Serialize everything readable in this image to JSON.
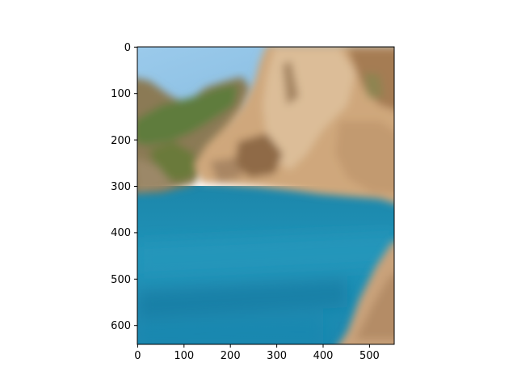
{
  "axes": {
    "x_ticks": [
      "0",
      "100",
      "200",
      "300",
      "400",
      "500"
    ],
    "y_ticks": [
      "0",
      "100",
      "200",
      "300",
      "400",
      "500",
      "600"
    ]
  },
  "image": {
    "description_icon": "coastal-landscape-image",
    "colors": {
      "sky": "#8ec2e6",
      "water": "#1e8fb4",
      "water_deep": "#156f96",
      "cliff_light": "#d9b184",
      "cliff_dark": "#9e7450",
      "vegetation": "#5f7a3a"
    }
  }
}
